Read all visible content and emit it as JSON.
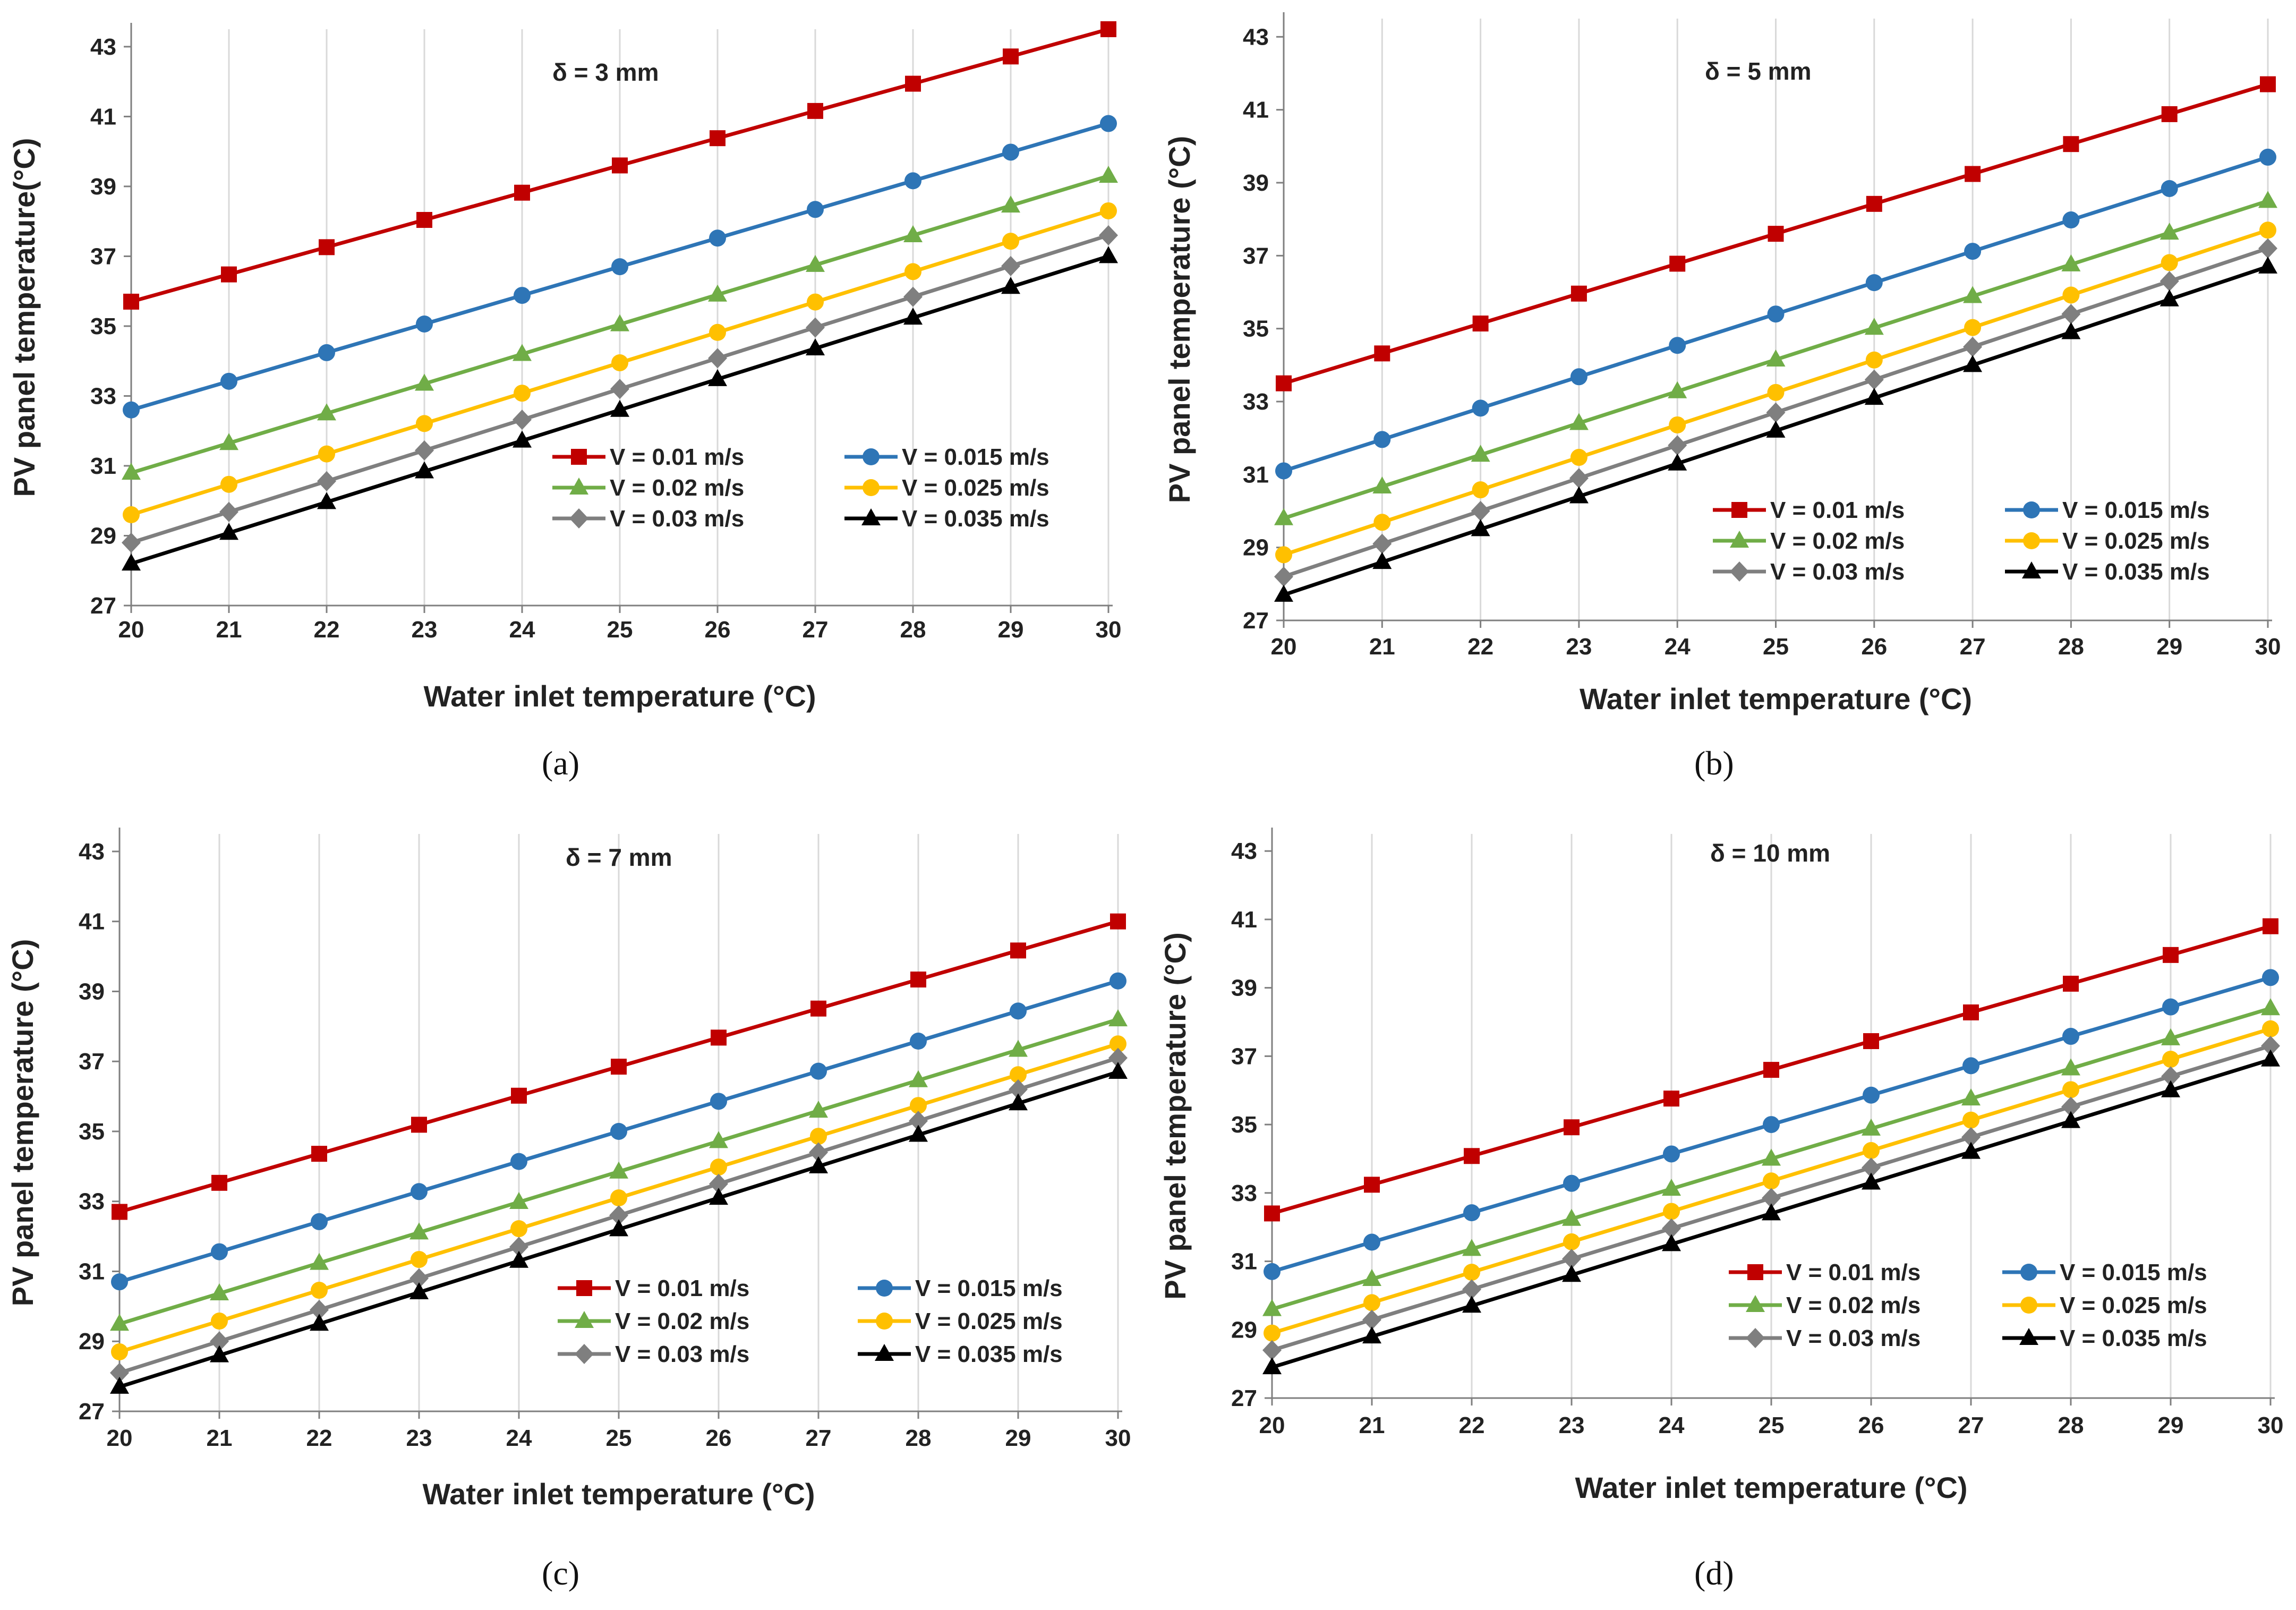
{
  "colors": {
    "V001": "#c00000",
    "V0015": "#2e75b6",
    "V002": "#70ad47",
    "V0025": "#ffc000",
    "V003": "#7f7f7f",
    "V0035": "#000000",
    "grid": "#d9d9d9",
    "axis": "#7f7f7f"
  },
  "chart_data": [
    {
      "id": "a",
      "type": "line",
      "caption": "(a)",
      "annotation": "δ = 3 mm",
      "xlabel": "Water inlet temperature (°C)",
      "ylabel": "PV panel temperature(°C)",
      "x": [
        20,
        21,
        22,
        23,
        24,
        25,
        26,
        27,
        28,
        29,
        30
      ],
      "xlim": [
        20,
        30
      ],
      "ylim": [
        27,
        43.5
      ],
      "yticks": [
        27,
        29,
        31,
        33,
        35,
        37,
        39,
        41,
        43
      ],
      "grid": "vertical",
      "legend_position": "bottom-right",
      "series": [
        {
          "name": "V = 0.01 m/s",
          "marker": "square",
          "color_key": "V001",
          "values": [
            35.7,
            36.48,
            37.26,
            38.04,
            38.82,
            39.6,
            40.38,
            41.16,
            41.94,
            42.72,
            43.5
          ]
        },
        {
          "name": "V = 0.015 m/s",
          "marker": "circle",
          "color_key": "V0015",
          "values": [
            32.6,
            33.42,
            34.24,
            35.06,
            35.88,
            36.7,
            37.52,
            38.34,
            39.16,
            39.98,
            40.8
          ]
        },
        {
          "name": "V = 0.02 m/s",
          "marker": "triangle",
          "color_key": "V002",
          "values": [
            30.8,
            31.65,
            32.5,
            33.35,
            34.2,
            35.05,
            35.9,
            36.75,
            37.6,
            38.45,
            39.3
          ]
        },
        {
          "name": "V = 0.025 m/s",
          "marker": "circle",
          "color_key": "V0025",
          "values": [
            29.6,
            30.47,
            31.34,
            32.21,
            33.08,
            33.95,
            34.82,
            35.69,
            36.56,
            37.43,
            38.3
          ]
        },
        {
          "name": "V = 0.03 m/s",
          "marker": "diamond",
          "color_key": "V003",
          "values": [
            28.8,
            29.68,
            30.56,
            31.44,
            32.32,
            33.2,
            34.08,
            34.96,
            35.84,
            36.72,
            37.6
          ]
        },
        {
          "name": "V = 0.035 m/s",
          "marker": "triangle",
          "color_key": "V0035",
          "values": [
            28.2,
            29.08,
            29.96,
            30.84,
            31.72,
            32.6,
            33.48,
            34.36,
            35.24,
            36.12,
            37.0
          ]
        }
      ]
    },
    {
      "id": "b",
      "type": "line",
      "caption": "(b)",
      "annotation": "δ = 5 mm",
      "xlabel": "Water inlet temperature (°C)",
      "ylabel": "PV  panel temperature (°C)",
      "x": [
        20,
        21,
        22,
        23,
        24,
        25,
        26,
        27,
        28,
        29,
        30
      ],
      "xlim": [
        20,
        30
      ],
      "ylim": [
        27,
        43.5
      ],
      "yticks": [
        27,
        29,
        31,
        33,
        35,
        37,
        39,
        41,
        43
      ],
      "grid": "vertical",
      "legend_position": "bottom-right",
      "series": [
        {
          "name": "V = 0.01 m/s",
          "marker": "square",
          "color_key": "V001",
          "values": [
            33.5,
            34.32,
            35.14,
            35.96,
            36.78,
            37.6,
            38.42,
            39.24,
            40.06,
            40.88,
            41.7
          ]
        },
        {
          "name": "V = 0.015 m/s",
          "marker": "circle",
          "color_key": "V0015",
          "values": [
            31.1,
            31.96,
            32.82,
            33.68,
            34.54,
            35.4,
            36.26,
            37.12,
            37.98,
            38.84,
            39.7
          ]
        },
        {
          "name": "V = 0.02 m/s",
          "marker": "triangle",
          "color_key": "V002",
          "values": [
            29.8,
            30.67,
            31.54,
            32.41,
            33.28,
            34.15,
            35.02,
            35.89,
            36.76,
            37.63,
            38.5
          ]
        },
        {
          "name": "V = 0.025 m/s",
          "marker": "circle",
          "color_key": "V0025",
          "values": [
            28.8,
            29.69,
            30.58,
            31.47,
            32.36,
            33.25,
            34.14,
            35.03,
            35.92,
            36.81,
            37.7
          ]
        },
        {
          "name": "V = 0.03 m/s",
          "marker": "diamond",
          "color_key": "V003",
          "values": [
            28.2,
            29.1,
            30.0,
            30.9,
            31.8,
            32.7,
            33.6,
            34.5,
            35.4,
            36.3,
            37.2
          ]
        },
        {
          "name": "V = 0.035 m/s",
          "marker": "triangle",
          "color_key": "V0035",
          "values": [
            27.7,
            28.6,
            29.5,
            30.4,
            31.3,
            32.2,
            33.1,
            34.0,
            34.9,
            35.8,
            36.7
          ]
        }
      ]
    },
    {
      "id": "c",
      "type": "line",
      "caption": "(c)",
      "annotation": "δ = 7 mm",
      "xlabel": "Water inlet temperature (°C)",
      "ylabel": "PV  panel temperature (°C)",
      "x": [
        20,
        21,
        22,
        23,
        24,
        25,
        26,
        27,
        28,
        29,
        30
      ],
      "xlim": [
        20,
        30
      ],
      "ylim": [
        27,
        43.5
      ],
      "yticks": [
        27,
        29,
        31,
        33,
        35,
        37,
        39,
        41,
        43
      ],
      "grid": "vertical",
      "legend_position": "bottom-right",
      "series": [
        {
          "name": "V = 0.01 m/s",
          "marker": "square",
          "color_key": "V001",
          "values": [
            32.7,
            33.53,
            34.36,
            35.19,
            36.02,
            36.85,
            37.68,
            38.51,
            39.34,
            40.17,
            41.0
          ]
        },
        {
          "name": "V = 0.015 m/s",
          "marker": "circle",
          "color_key": "V0015",
          "values": [
            30.7,
            31.56,
            32.42,
            33.28,
            34.14,
            35.0,
            35.86,
            36.72,
            37.58,
            38.44,
            39.3
          ]
        },
        {
          "name": "V = 0.02 m/s",
          "marker": "triangle",
          "color_key": "V002",
          "values": [
            29.5,
            30.37,
            31.24,
            32.11,
            32.98,
            33.85,
            34.72,
            35.59,
            36.46,
            37.33,
            38.2
          ]
        },
        {
          "name": "V = 0.025 m/s",
          "marker": "circle",
          "color_key": "V0025",
          "values": [
            28.7,
            29.58,
            30.46,
            31.34,
            32.22,
            33.1,
            33.98,
            34.86,
            35.74,
            36.62,
            37.5
          ]
        },
        {
          "name": "V = 0.03 m/s",
          "marker": "diamond",
          "color_key": "V003",
          "values": [
            28.1,
            29.0,
            29.9,
            30.8,
            31.7,
            32.6,
            33.5,
            34.4,
            35.3,
            36.2,
            37.1
          ]
        },
        {
          "name": "V = 0.035 m/s",
          "marker": "triangle",
          "color_key": "V0035",
          "values": [
            27.7,
            28.6,
            29.5,
            30.4,
            31.3,
            32.2,
            33.1,
            34.0,
            34.9,
            35.8,
            36.7
          ]
        }
      ]
    },
    {
      "id": "d",
      "type": "line",
      "caption": "(d)",
      "annotation": "δ = 10 mm",
      "xlabel": "Water inlet temperature (°C)",
      "ylabel": "PV  panel temperature (°C)",
      "x": [
        20,
        21,
        22,
        23,
        24,
        25,
        26,
        27,
        28,
        29,
        30
      ],
      "xlim": [
        20,
        30
      ],
      "ylim": [
        27,
        43.5
      ],
      "yticks": [
        27,
        29,
        31,
        33,
        35,
        37,
        39,
        41,
        43
      ],
      "grid": "vertical",
      "legend_position": "bottom-right",
      "series": [
        {
          "name": "V = 0.01 m/s",
          "marker": "square",
          "color_key": "V001",
          "values": [
            32.4,
            33.24,
            34.08,
            34.92,
            35.76,
            36.6,
            37.44,
            38.28,
            39.12,
            39.96,
            40.8
          ]
        },
        {
          "name": "V = 0.015 m/s",
          "marker": "circle",
          "color_key": "V0015",
          "values": [
            30.7,
            31.56,
            32.42,
            33.28,
            34.14,
            35.0,
            35.86,
            36.72,
            37.58,
            38.44,
            39.3
          ]
        },
        {
          "name": "V = 0.02 m/s",
          "marker": "triangle",
          "color_key": "V002",
          "values": [
            29.6,
            30.48,
            31.36,
            32.24,
            33.12,
            34.0,
            34.88,
            35.76,
            36.64,
            37.52,
            38.4
          ]
        },
        {
          "name": "V = 0.025 m/s",
          "marker": "circle",
          "color_key": "V0025",
          "values": [
            28.9,
            29.79,
            30.68,
            31.57,
            32.46,
            33.35,
            34.24,
            35.13,
            36.02,
            36.91,
            37.8
          ]
        },
        {
          "name": "V = 0.03 m/s",
          "marker": "diamond",
          "color_key": "V003",
          "values": [
            28.4,
            29.29,
            30.18,
            31.07,
            31.96,
            32.85,
            33.74,
            34.63,
            35.52,
            36.41,
            37.3
          ]
        },
        {
          "name": "V = 0.035 m/s",
          "marker": "triangle",
          "color_key": "V0035",
          "values": [
            27.9,
            28.8,
            29.7,
            30.6,
            31.5,
            32.4,
            33.3,
            34.2,
            35.1,
            36.0,
            36.9
          ]
        }
      ]
    }
  ]
}
